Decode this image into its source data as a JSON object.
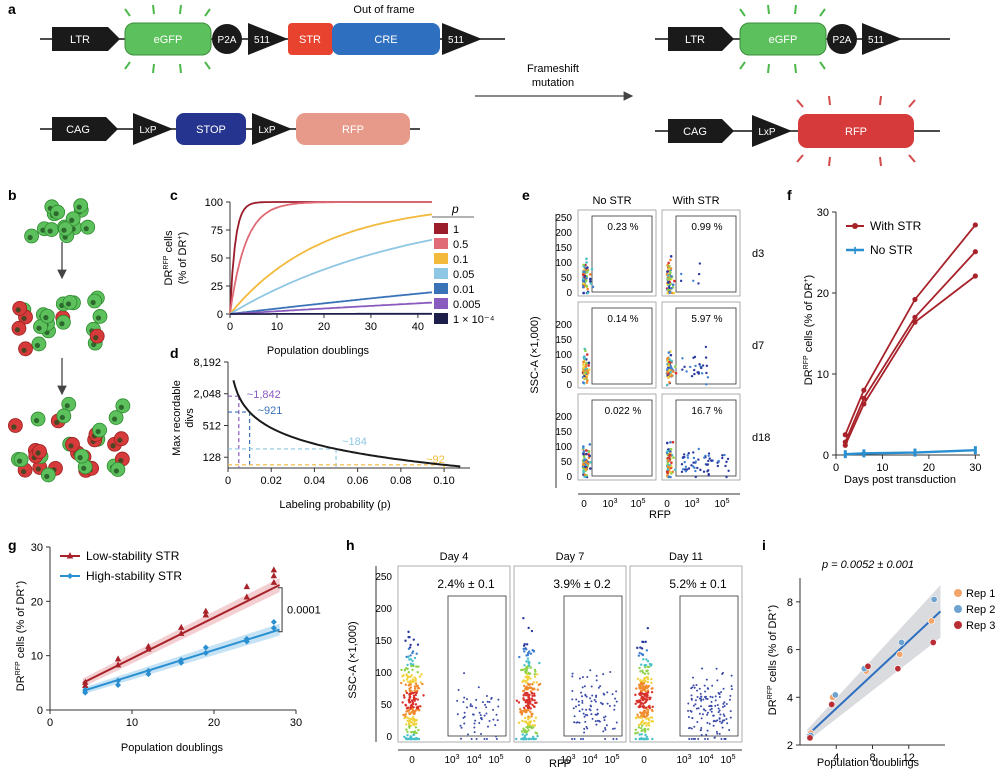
{
  "panel_labels": {
    "a": "a",
    "b": "b",
    "c": "c",
    "d": "d",
    "e": "e",
    "f": "f",
    "g": "g",
    "h": "h",
    "i": "i"
  },
  "panel_a": {
    "construct1": [
      "LTR",
      "eGFP",
      "P2A",
      "511",
      "STR",
      "CRE",
      "511"
    ],
    "out_of_frame": "Out of frame",
    "construct2": [
      "CAG",
      "LxP",
      "STOP",
      "LxP",
      "RFP"
    ],
    "arrow_label_1": "Frameshift",
    "arrow_label_2": "mutation",
    "result1": [
      "LTR",
      "eGFP",
      "P2A",
      "511"
    ],
    "result2": [
      "CAG",
      "LxP",
      "RFP"
    ]
  },
  "colors": {
    "egfp": "#5cc15c",
    "str": "#e8432e",
    "cre": "#2f6fbf",
    "stop": "#25358f",
    "rfp_pale": "#e89a8a",
    "rfp_active": "#d63a3a",
    "black": "#1a1a1a",
    "glow_green": "#4cb84c",
    "glow_red": "#d24a4a",
    "dark_red": "#a8222a",
    "blue": "#2a8fd0"
  },
  "chart_data": [
    {
      "id": "c",
      "type": "line",
      "title": "",
      "ylabel_1": "DR",
      "ylabel_sup": "RFP",
      "ylabel_2": " cells",
      "ylabel_line2": "(% of DR",
      "ylabel_sup2": "+",
      "ylabel_close": ")",
      "xlabel": "Population doublings",
      "xticks": [
        0,
        10,
        20,
        30,
        40
      ],
      "yticks": [
        0,
        25,
        50,
        75,
        100
      ],
      "xlim": [
        0,
        43
      ],
      "ylim": [
        0,
        100
      ],
      "legend_title": "p",
      "series": [
        {
          "name": "1",
          "rate": 1,
          "color": "#9b1c2a"
        },
        {
          "name": "0.5",
          "rate": 0.5,
          "color": "#e06a75"
        },
        {
          "name": "0.1",
          "rate": 0.1,
          "color": "#f2b93a"
        },
        {
          "name": "0.05",
          "rate": 0.05,
          "color": "#8ec7e3"
        },
        {
          "name": "0.01",
          "rate": 0.01,
          "color": "#3a72b8"
        },
        {
          "name": "0.005",
          "rate": 0.005,
          "color": "#8a5bbf"
        },
        {
          "name": "1 × 10⁻⁴",
          "rate": 0.0001,
          "color": "#1e1e4a"
        }
      ]
    },
    {
      "id": "d",
      "type": "line",
      "ylabel": "Max recordable",
      "ylabel2": "divs",
      "xlabel": "Labeling probability (p)",
      "xticks": [
        "0",
        "0.02",
        "0.04",
        "0.06",
        "0.08",
        "0.10"
      ],
      "xtick_values": [
        0,
        0.02,
        0.04,
        0.06,
        0.08,
        0.1
      ],
      "yticks": [
        "128",
        "512",
        "2,048",
        "8,192"
      ],
      "ytick_values": [
        128,
        512,
        2048,
        8192
      ],
      "xlim": [
        0,
        0.112
      ],
      "annotations": [
        {
          "label": "~1,842",
          "x": 0.005,
          "y": 1842,
          "color": "#8a5bbf"
        },
        {
          "label": "~921",
          "x": 0.01,
          "y": 921,
          "color": "#3a72b8"
        },
        {
          "label": "~184",
          "x": 0.05,
          "y": 184,
          "color": "#8ec7e3"
        },
        {
          "label": "~92",
          "x": 0.1,
          "y": 92,
          "color": "#f2b93a"
        }
      ]
    },
    {
      "id": "e",
      "type": "scatter",
      "col_headers": [
        "No STR",
        "With STR"
      ],
      "row_labels": [
        "d3",
        "d7",
        "d18"
      ],
      "percents": [
        [
          "0.23 %",
          "0.99 %"
        ],
        [
          "0.14 %",
          "5.97 %"
        ],
        [
          "0.022 %",
          "16.7 %"
        ]
      ],
      "ylabel": "SSC-A (×1,000)",
      "xlabel": "RFP",
      "yticks": [
        "0",
        "50",
        "100",
        "150",
        "200",
        "250"
      ],
      "xticks": [
        "0",
        "10",
        "3",
        "10",
        "5"
      ]
    },
    {
      "id": "f",
      "type": "line",
      "ylabel_1": "DR",
      "ylabel_sup": "RFP",
      "ylabel_2": " cells (% of DR",
      "ylabel_sup2": "+",
      "ylabel_close": ")",
      "xlabel": "Days post transduction",
      "xticks": [
        0,
        10,
        20,
        30
      ],
      "yticks": [
        0,
        10,
        20,
        30
      ],
      "xlim": [
        0,
        31
      ],
      "ylim": [
        0,
        30
      ],
      "legend": [
        "With STR",
        "No STR"
      ],
      "series": [
        {
          "name": "With STR rep1",
          "x": [
            2,
            6,
            17,
            30
          ],
          "y": [
            2.5,
            8,
            19.2,
            28.4
          ]
        },
        {
          "name": "With STR rep2",
          "x": [
            2,
            6,
            17,
            30
          ],
          "y": [
            1.6,
            7,
            17,
            25.1
          ]
        },
        {
          "name": "With STR rep3",
          "x": [
            2,
            6,
            17,
            30
          ],
          "y": [
            1.2,
            6.3,
            16.4,
            22.1
          ]
        },
        {
          "name": "No STR",
          "x": [
            2,
            6,
            17,
            30
          ],
          "y": [
            0.1,
            0.2,
            0.3,
            0.6
          ]
        }
      ]
    },
    {
      "id": "g",
      "type": "scatter",
      "ylabel_1": "DR",
      "ylabel_sup": "RFP",
      "ylabel_2": " cells (% of DR",
      "ylabel_sup2": "+",
      "ylabel_close": ")",
      "xlabel": "Population doublings",
      "xticks": [
        0,
        10,
        20,
        30
      ],
      "yticks": [
        0,
        10,
        20,
        30
      ],
      "xlim": [
        0,
        30
      ],
      "ylim": [
        0,
        30
      ],
      "legend": [
        "Low-stability STR",
        "High-stability STR"
      ],
      "pvalue": "0.0001",
      "low": {
        "x": [
          4.3,
          8.3,
          12,
          16,
          19,
          24,
          27.3
        ],
        "y": [
          [
            4.5,
            5.1
          ],
          [
            8.3,
            9.4
          ],
          [
            11.2,
            11.7
          ],
          [
            14.1,
            15.2
          ],
          [
            17.5,
            18.2
          ],
          [
            20.8,
            22.7
          ],
          [
            23.5,
            24.7,
            25.8
          ]
        ]
      },
      "high": {
        "x": [
          4.3,
          8.3,
          12,
          16,
          19,
          24,
          27.3
        ],
        "y": [
          [
            3.2,
            3.7
          ],
          [
            4.6,
            5.4
          ],
          [
            6.6,
            7.2
          ],
          [
            8.7,
            9.2
          ],
          [
            10.5,
            11.5
          ],
          [
            13.1,
            12.6
          ],
          [
            15.1,
            16.2
          ]
        ]
      },
      "fit_low": [
        [
          4,
          5
        ],
        [
          28,
          23
        ]
      ],
      "fit_high": [
        [
          4,
          3.5
        ],
        [
          28,
          14.8
        ]
      ]
    },
    {
      "id": "h",
      "type": "scatter",
      "titles": [
        "Day 4",
        "Day 7",
        "Day 11"
      ],
      "percents": [
        "2.4% ± 0.1",
        "3.9% ± 0.2",
        "5.2% ± 0.1"
      ],
      "ylabel": "SSC-A (×1,000)",
      "xlabel": "RFP",
      "yticks": [
        "0",
        "50",
        "100",
        "150",
        "200",
        "250"
      ]
    },
    {
      "id": "i",
      "type": "scatter",
      "title": "p = 0.0052 ± 0.001",
      "ylabel_1": "DR",
      "ylabel_sup": "RFP",
      "ylabel_2": " cells (% of DR",
      "ylabel_sup2": "+",
      "ylabel_close": ")",
      "xlabel": "Population doublings",
      "xticks": [
        4,
        8,
        12
      ],
      "yticks": [
        2,
        4,
        6,
        8
      ],
      "xlim": [
        0,
        16
      ],
      "ylim": [
        2,
        9
      ],
      "legend": [
        "Rep 1",
        "Rep 2",
        "Rep 3"
      ],
      "reps": [
        {
          "color": "#f2a46a",
          "x": [
            1.2,
            3.6,
            7.3,
            11,
            14.5
          ],
          "y": [
            2.5,
            4.0,
            5.1,
            5.8,
            7.2
          ]
        },
        {
          "color": "#6fa3cf",
          "x": [
            1.2,
            3.9,
            7.1,
            11.2,
            14.8
          ],
          "y": [
            2.4,
            4.1,
            5.2,
            6.3,
            8.1
          ]
        },
        {
          "color": "#b82e34",
          "x": [
            1.1,
            3.5,
            7.5,
            10.8,
            14.7
          ],
          "y": [
            2.3,
            3.7,
            5.3,
            5.2,
            6.3
          ]
        }
      ],
      "fit": [
        [
          0.8,
          2.4
        ],
        [
          15.5,
          7.6
        ]
      ]
    }
  ]
}
